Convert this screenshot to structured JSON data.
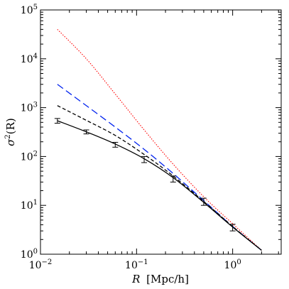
{
  "chart_data": {
    "type": "line",
    "title": "",
    "xlabel": {
      "variable": "R",
      "unit": "[Mpc/h]"
    },
    "ylabel": {
      "base": "σ",
      "exponent": "2",
      "arg": "(R)"
    },
    "xscale": "log",
    "yscale": "log",
    "xlim": [
      0.01,
      3.2
    ],
    "ylim": [
      1,
      100000
    ],
    "x_ticks": [
      {
        "value": 0.01,
        "base": "10",
        "exp": "−2"
      },
      {
        "value": 0.1,
        "base": "10",
        "exp": "−1"
      },
      {
        "value": 1,
        "base": "10",
        "exp": "0"
      }
    ],
    "y_ticks": [
      {
        "value": 1,
        "base": "10",
        "exp": "0"
      },
      {
        "value": 10,
        "base": "10",
        "exp": "1"
      },
      {
        "value": 100,
        "base": "10",
        "exp": "2"
      },
      {
        "value": 1000,
        "base": "10",
        "exp": "3"
      },
      {
        "value": 10000,
        "base": "10",
        "exp": "4"
      },
      {
        "value": 100000,
        "base": "10",
        "exp": "5"
      }
    ],
    "grid": false,
    "legend": "none",
    "series": [
      {
        "style": "solid",
        "color": "#000000",
        "x": [
          0.015,
          0.03,
          0.06,
          0.12,
          0.24,
          0.5,
          1.0,
          2.0
        ],
        "y": [
          540,
          320,
          180,
          90,
          37,
          11.5,
          3.6,
          1.2
        ]
      },
      {
        "style": "dashed",
        "color": "#000000",
        "x": [
          0.015,
          0.03,
          0.06,
          0.12,
          0.24,
          0.5,
          1.0,
          2.0
        ],
        "y": [
          1100,
          550,
          270,
          110,
          40,
          12,
          3.7,
          1.2
        ]
      },
      {
        "style": "long-dashed",
        "color": "#0022ee",
        "x": [
          0.015,
          0.03,
          0.06,
          0.12,
          0.24,
          0.5,
          1.0,
          2.0
        ],
        "y": [
          3000,
          1100,
          400,
          140,
          45,
          12.5,
          3.7,
          1.2
        ]
      },
      {
        "style": "dotted",
        "color": "#ff0000",
        "x": [
          0.015,
          0.03,
          0.06,
          0.12,
          0.24,
          0.5,
          1.0,
          2.0
        ],
        "y": [
          40000,
          10000,
          1900,
          350,
          70,
          15,
          4.2,
          1.2
        ]
      }
    ],
    "error_bars": {
      "color": "#000000",
      "points": [
        {
          "x": 0.015,
          "y": 540,
          "low": 480,
          "high": 600
        },
        {
          "x": 0.03,
          "y": 320,
          "low": 290,
          "high": 350
        },
        {
          "x": 0.06,
          "y": 175,
          "low": 155,
          "high": 195
        },
        {
          "x": 0.12,
          "y": 88,
          "low": 75,
          "high": 100
        },
        {
          "x": 0.24,
          "y": 35,
          "low": 30,
          "high": 40
        },
        {
          "x": 0.5,
          "y": 12,
          "low": 10,
          "high": 14
        },
        {
          "x": 1.0,
          "y": 3.5,
          "low": 3.0,
          "high": 4.1
        }
      ]
    }
  }
}
